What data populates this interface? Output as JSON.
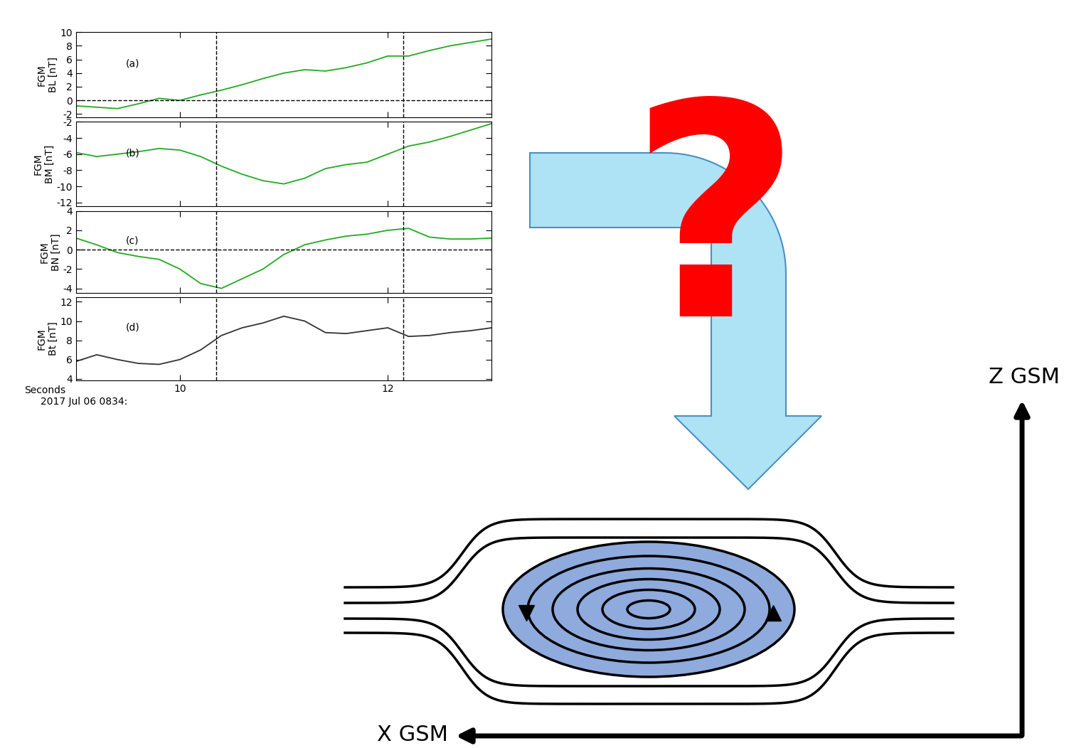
{
  "chart_data": [
    {
      "type": "line",
      "ylabel": "FGM\nBL [nT]",
      "annotations": [
        "(a)"
      ],
      "x": [
        9.0,
        9.2,
        9.4,
        9.6,
        9.8,
        10.0,
        10.2,
        10.4,
        10.6,
        10.8,
        11.0,
        11.2,
        11.4,
        11.6,
        11.8,
        12.0,
        12.2,
        12.4,
        12.6,
        12.8,
        13.0
      ],
      "series": [
        {
          "color": "#22aa22",
          "values": [
            -0.8,
            -1.0,
            -1.2,
            -0.5,
            0.3,
            0.0,
            0.8,
            1.5,
            2.3,
            3.2,
            4.0,
            4.5,
            4.3,
            4.8,
            5.5,
            6.5,
            6.5,
            7.3,
            8.0,
            8.5,
            9.0
          ]
        }
      ],
      "xlim": [
        9,
        13
      ],
      "xticks": [
        10,
        12
      ],
      "ylim": [
        -2.5,
        10
      ],
      "yticks": [
        -2,
        0,
        2,
        4,
        6,
        8,
        10
      ],
      "vlines": [
        10.35,
        12.15
      ],
      "hlines": [
        0
      ],
      "tick_labels": "y"
    },
    {
      "type": "line",
      "ylabel": "FGM\nBM [nT]",
      "annotations": [
        "(b)"
      ],
      "x": [
        9.0,
        9.2,
        9.4,
        9.6,
        9.8,
        10.0,
        10.2,
        10.4,
        10.6,
        10.8,
        11.0,
        11.2,
        11.4,
        11.6,
        11.8,
        12.0,
        12.2,
        12.4,
        12.6,
        12.8,
        13.0
      ],
      "series": [
        {
          "color": "#22aa22",
          "values": [
            -5.8,
            -6.3,
            -6.0,
            -5.7,
            -5.3,
            -5.5,
            -6.3,
            -7.5,
            -8.5,
            -9.3,
            -9.7,
            -9.0,
            -7.8,
            -7.3,
            -7.0,
            -6.0,
            -5.0,
            -4.5,
            -3.8,
            -3.0,
            -2.2
          ]
        }
      ],
      "xlim": [
        9,
        13
      ],
      "xticks": [
        10,
        12
      ],
      "ylim": [
        -12.5,
        -2
      ],
      "yticks": [
        -12,
        -10,
        -8,
        -6,
        -4,
        -2
      ],
      "vlines": [
        10.35,
        12.15
      ],
      "tick_labels": "y"
    },
    {
      "type": "line",
      "ylabel": "FGM\nBN [nT]",
      "annotations": [
        "(c)"
      ],
      "x": [
        9.0,
        9.2,
        9.4,
        9.6,
        9.8,
        10.0,
        10.2,
        10.4,
        10.6,
        10.8,
        11.0,
        11.2,
        11.4,
        11.6,
        11.8,
        12.0,
        12.2,
        12.4,
        12.6,
        12.8,
        13.0
      ],
      "series": [
        {
          "color": "#22aa22",
          "values": [
            1.2,
            0.5,
            -0.3,
            -0.7,
            -1.0,
            -2.0,
            -3.5,
            -4.0,
            -3.0,
            -2.0,
            -0.5,
            0.5,
            1.0,
            1.4,
            1.6,
            2.0,
            2.2,
            1.3,
            1.1,
            1.1,
            1.2
          ]
        }
      ],
      "xlim": [
        9,
        13
      ],
      "xticks": [
        10,
        12
      ],
      "ylim": [
        -4.5,
        4
      ],
      "yticks": [
        -4,
        -2,
        0,
        2,
        4
      ],
      "vlines": [
        10.35,
        12.15
      ],
      "hlines": [
        0
      ],
      "tick_labels": "y"
    },
    {
      "type": "line",
      "ylabel": "FGM\nBt [nT]",
      "annotations": [
        "(d)"
      ],
      "x": [
        9.0,
        9.2,
        9.4,
        9.6,
        9.8,
        10.0,
        10.2,
        10.4,
        10.6,
        10.8,
        11.0,
        11.2,
        11.4,
        11.6,
        11.8,
        12.0,
        12.2,
        12.4,
        12.6,
        12.8,
        13.0
      ],
      "series": [
        {
          "color": "#333333",
          "values": [
            5.8,
            6.5,
            6.0,
            5.6,
            5.5,
            6.0,
            7.0,
            8.5,
            9.3,
            9.8,
            10.5,
            10.0,
            8.8,
            8.7,
            9.0,
            9.3,
            8.4,
            8.5,
            8.8,
            9.0,
            9.3
          ]
        }
      ],
      "xlim": [
        9,
        13
      ],
      "xticks": [
        10,
        12
      ],
      "ylim": [
        3.8,
        12.5
      ],
      "yticks": [
        4,
        6,
        8,
        10,
        12
      ],
      "vlines": [
        10.35,
        12.15
      ]
    }
  ],
  "time_axis": {
    "label": "Seconds",
    "date": "2017 Jul 06 0834:"
  },
  "diagram": {
    "question": "?",
    "axes": {
      "vertical": "Z GSM",
      "horizontal": "X GSM"
    }
  }
}
